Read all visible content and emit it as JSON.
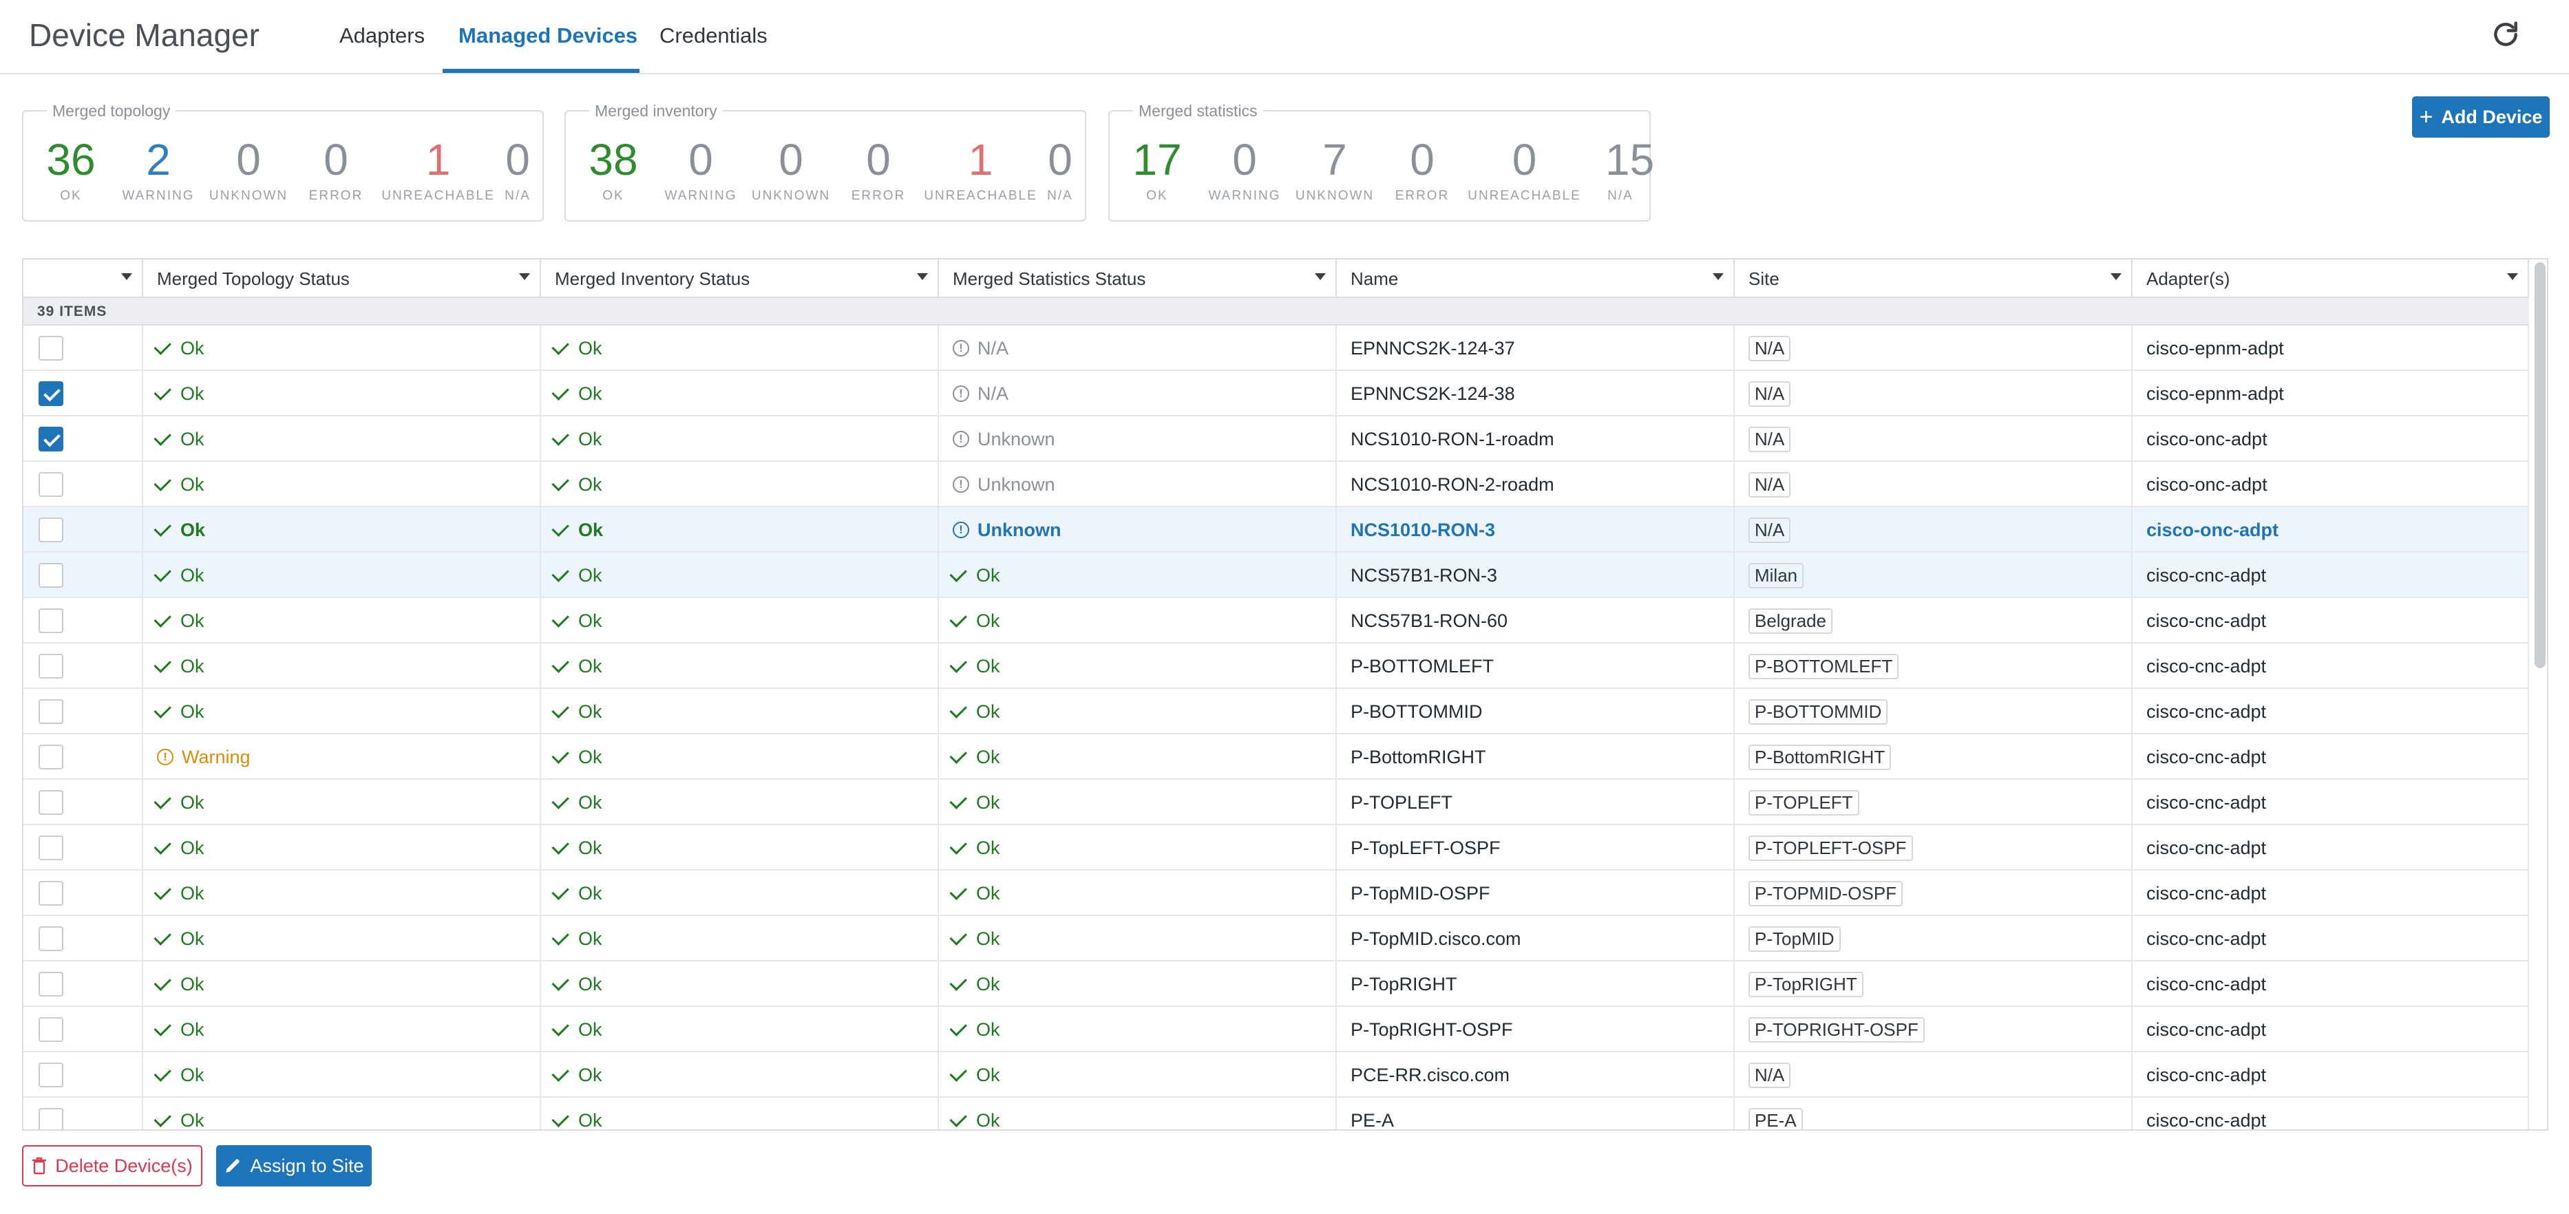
{
  "app": {
    "title": "Device Manager"
  },
  "tabs": [
    {
      "label": "Adapters",
      "active": false
    },
    {
      "label": "Managed Devices",
      "active": true
    },
    {
      "label": "Credentials",
      "active": false
    }
  ],
  "summary": [
    {
      "title": "Merged topology",
      "stats": [
        {
          "value": "36",
          "label": "OK",
          "tone": "ok"
        },
        {
          "value": "2",
          "label": "WARNING",
          "tone": "warn"
        },
        {
          "value": "0",
          "label": "UNKNOWN",
          "tone": "neutral"
        },
        {
          "value": "0",
          "label": "ERROR",
          "tone": "neutral"
        },
        {
          "value": "1",
          "label": "UNREACHABLE",
          "tone": "unreach"
        },
        {
          "value": "0",
          "label": "N/A",
          "tone": "neutral"
        }
      ]
    },
    {
      "title": "Merged inventory",
      "stats": [
        {
          "value": "38",
          "label": "OK",
          "tone": "ok"
        },
        {
          "value": "0",
          "label": "WARNING",
          "tone": "neutral"
        },
        {
          "value": "0",
          "label": "UNKNOWN",
          "tone": "neutral"
        },
        {
          "value": "0",
          "label": "ERROR",
          "tone": "neutral"
        },
        {
          "value": "1",
          "label": "UNREACHABLE",
          "tone": "unreach"
        },
        {
          "value": "0",
          "label": "N/A",
          "tone": "neutral"
        }
      ]
    },
    {
      "title": "Merged statistics",
      "stats": [
        {
          "value": "17",
          "label": "OK",
          "tone": "ok"
        },
        {
          "value": "0",
          "label": "WARNING",
          "tone": "neutral"
        },
        {
          "value": "7",
          "label": "UNKNOWN",
          "tone": "neutral"
        },
        {
          "value": "0",
          "label": "ERROR",
          "tone": "neutral"
        },
        {
          "value": "0",
          "label": "UNREACHABLE",
          "tone": "neutral"
        },
        {
          "value": "15",
          "label": "N/A",
          "tone": "neutral"
        }
      ]
    }
  ],
  "toolbar": {
    "add_label": "Add Device"
  },
  "table": {
    "columns": [
      "",
      "Merged Topology Status",
      "Merged Inventory Status",
      "Merged Statistics Status",
      "Name",
      "Site",
      "Adapter(s)"
    ],
    "group_label": "39 ITEMS",
    "rows": [
      {
        "checked": false,
        "topo": "Ok",
        "inv": "Ok",
        "stat": "N/A",
        "name": "EPNNCS2K-124-37",
        "site": "N/A",
        "adapter": "cisco-epnm-adpt"
      },
      {
        "checked": true,
        "topo": "Ok",
        "inv": "Ok",
        "stat": "N/A",
        "name": "EPNNCS2K-124-38",
        "site": "N/A",
        "adapter": "cisco-epnm-adpt"
      },
      {
        "checked": true,
        "topo": "Ok",
        "inv": "Ok",
        "stat": "Unknown",
        "name": "NCS1010-RON-1-roadm",
        "site": "N/A",
        "adapter": "cisco-onc-adpt"
      },
      {
        "checked": false,
        "topo": "Ok",
        "inv": "Ok",
        "stat": "Unknown",
        "name": "NCS1010-RON-2-roadm",
        "site": "N/A",
        "adapter": "cisco-onc-adpt"
      },
      {
        "checked": false,
        "topo": "Ok",
        "inv": "Ok",
        "stat": "Unknown",
        "name": "NCS1010-RON-3",
        "site": "N/A",
        "adapter": "cisco-onc-adpt",
        "highlight": "selected"
      },
      {
        "checked": false,
        "topo": "Ok",
        "inv": "Ok",
        "stat": "Ok",
        "name": "NCS57B1-RON-3",
        "site": "Milan",
        "adapter": "cisco-cnc-adpt",
        "highlight": "hover"
      },
      {
        "checked": false,
        "topo": "Ok",
        "inv": "Ok",
        "stat": "Ok",
        "name": "NCS57B1-RON-60",
        "site": "Belgrade",
        "adapter": "cisco-cnc-adpt"
      },
      {
        "checked": false,
        "topo": "Ok",
        "inv": "Ok",
        "stat": "Ok",
        "name": "P-BOTTOMLEFT",
        "site": "P-BOTTOMLEFT",
        "adapter": "cisco-cnc-adpt"
      },
      {
        "checked": false,
        "topo": "Ok",
        "inv": "Ok",
        "stat": "Ok",
        "name": "P-BOTTOMMID",
        "site": "P-BOTTOMMID",
        "adapter": "cisco-cnc-adpt"
      },
      {
        "checked": false,
        "topo": "Warning",
        "inv": "Ok",
        "stat": "Ok",
        "name": "P-BottomRIGHT",
        "site": "P-BottomRIGHT",
        "adapter": "cisco-cnc-adpt"
      },
      {
        "checked": false,
        "topo": "Ok",
        "inv": "Ok",
        "stat": "Ok",
        "name": "P-TOPLEFT",
        "site": "P-TOPLEFT",
        "adapter": "cisco-cnc-adpt"
      },
      {
        "checked": false,
        "topo": "Ok",
        "inv": "Ok",
        "stat": "Ok",
        "name": "P-TopLEFT-OSPF",
        "site": "P-TOPLEFT-OSPF",
        "adapter": "cisco-cnc-adpt"
      },
      {
        "checked": false,
        "topo": "Ok",
        "inv": "Ok",
        "stat": "Ok",
        "name": "P-TopMID-OSPF",
        "site": "P-TOPMID-OSPF",
        "adapter": "cisco-cnc-adpt"
      },
      {
        "checked": false,
        "topo": "Ok",
        "inv": "Ok",
        "stat": "Ok",
        "name": "P-TopMID.cisco.com",
        "site": "P-TopMID",
        "adapter": "cisco-cnc-adpt"
      },
      {
        "checked": false,
        "topo": "Ok",
        "inv": "Ok",
        "stat": "Ok",
        "name": "P-TopRIGHT",
        "site": "P-TopRIGHT",
        "adapter": "cisco-cnc-adpt"
      },
      {
        "checked": false,
        "topo": "Ok",
        "inv": "Ok",
        "stat": "Ok",
        "name": "P-TopRIGHT-OSPF",
        "site": "P-TOPRIGHT-OSPF",
        "adapter": "cisco-cnc-adpt"
      },
      {
        "checked": false,
        "topo": "Ok",
        "inv": "Ok",
        "stat": "Ok",
        "name": "PCE-RR.cisco.com",
        "site": "N/A",
        "adapter": "cisco-cnc-adpt"
      },
      {
        "checked": false,
        "topo": "Ok",
        "inv": "Ok",
        "stat": "Ok",
        "name": "PE-A",
        "site": "PE-A",
        "adapter": "cisco-cnc-adpt"
      }
    ]
  },
  "footer": {
    "delete_label": "Delete Device(s)",
    "assign_label": "Assign to Site"
  }
}
